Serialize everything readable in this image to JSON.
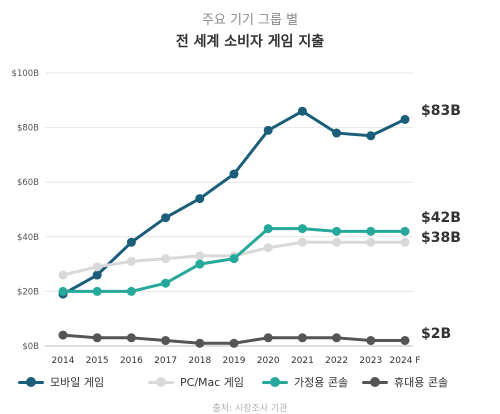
{
  "header": {
    "subtitle": "주요 기기 그룹 별",
    "title": "전 세계 소비자 게임 지출"
  },
  "footnote": "출처: 시장조사 기관",
  "chart_data": {
    "type": "line",
    "title": "전 세계 소비자 게임 지출",
    "subtitle": "주요 기기 그룹 별",
    "categories": [
      "2014",
      "2015",
      "2016",
      "2017",
      "2018",
      "2019",
      "2020",
      "2021",
      "2022",
      "2023",
      "2024 F"
    ],
    "ylim": [
      0,
      100
    ],
    "yticks": [
      0,
      20,
      40,
      60,
      80,
      100
    ],
    "ytick_labels": [
      "$0B",
      "$20B",
      "$40B",
      "$60B",
      "$80B",
      "$100B"
    ],
    "grid": "horizontal",
    "legend_position": "bottom",
    "series": [
      {
        "name": "모바일 게임",
        "color": "#1b5e7a",
        "values": [
          19,
          26,
          38,
          47,
          54,
          63,
          79,
          86,
          78,
          77,
          83
        ],
        "end_label": "$83B"
      },
      {
        "name": "PC/Mac 게임",
        "color": "#d9d9d9",
        "values": [
          26,
          29,
          31,
          32,
          33,
          33,
          36,
          38,
          38,
          38,
          38
        ],
        "end_label": "$38B"
      },
      {
        "name": "가정용 콘솔",
        "color": "#26a89a",
        "values": [
          20,
          20,
          20,
          23,
          30,
          32,
          43,
          43,
          42,
          42,
          42
        ],
        "end_label": "$42B"
      },
      {
        "name": "휴대용 콘솔",
        "color": "#555555",
        "values": [
          4,
          3,
          3,
          2,
          1,
          1,
          3,
          3,
          3,
          2,
          2
        ],
        "end_label": "$2B"
      }
    ]
  }
}
